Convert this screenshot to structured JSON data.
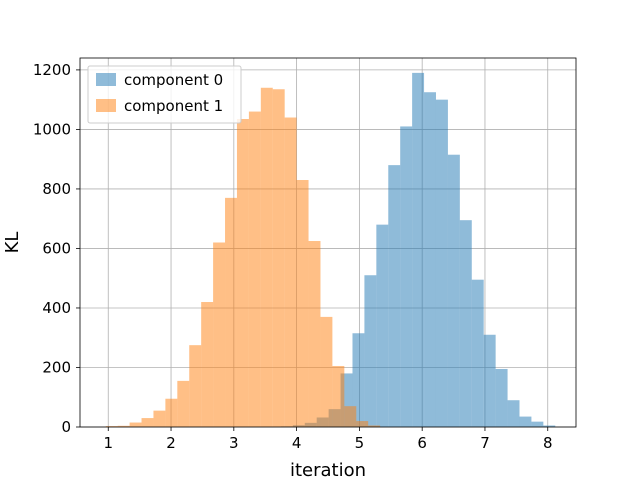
{
  "chart_data": {
    "type": "histogram",
    "xlabel": "iteration",
    "ylabel": "KL",
    "xlim": [
      0.55,
      8.45
    ],
    "ylim": [
      0,
      1200
    ],
    "x_ticks": [
      "1",
      "2",
      "3",
      "4",
      "5",
      "6",
      "7",
      "8"
    ],
    "y_ticks": [
      "0",
      "200",
      "400",
      "600",
      "800",
      "1000",
      "1200"
    ],
    "grid": true,
    "legend_position": "top-left",
    "bin_width": 0.19,
    "series": [
      {
        "name": "component 0",
        "color": "#1f77b4",
        "opacity": 0.5,
        "bins": [
          {
            "x": 3.75,
            "value": 2
          },
          {
            "x": 3.94,
            "value": 6
          },
          {
            "x": 4.13,
            "value": 14
          },
          {
            "x": 4.32,
            "value": 32
          },
          {
            "x": 4.51,
            "value": 60
          },
          {
            "x": 4.7,
            "value": 180
          },
          {
            "x": 4.89,
            "value": 315
          },
          {
            "x": 5.08,
            "value": 510
          },
          {
            "x": 5.27,
            "value": 680
          },
          {
            "x": 5.46,
            "value": 880
          },
          {
            "x": 5.65,
            "value": 1010
          },
          {
            "x": 5.84,
            "value": 1190
          },
          {
            "x": 6.03,
            "value": 1125
          },
          {
            "x": 6.22,
            "value": 1100
          },
          {
            "x": 6.41,
            "value": 915
          },
          {
            "x": 6.6,
            "value": 695
          },
          {
            "x": 6.79,
            "value": 495
          },
          {
            "x": 6.98,
            "value": 310
          },
          {
            "x": 7.17,
            "value": 195
          },
          {
            "x": 7.36,
            "value": 90
          },
          {
            "x": 7.55,
            "value": 35
          },
          {
            "x": 7.74,
            "value": 18
          },
          {
            "x": 7.93,
            "value": 5
          }
        ]
      },
      {
        "name": "component 1",
        "color": "#ff7f0e",
        "opacity": 0.5,
        "bins": [
          {
            "x": 0.96,
            "value": 3
          },
          {
            "x": 1.15,
            "value": 4
          },
          {
            "x": 1.34,
            "value": 15
          },
          {
            "x": 1.53,
            "value": 30
          },
          {
            "x": 1.72,
            "value": 55
          },
          {
            "x": 1.91,
            "value": 95
          },
          {
            "x": 2.1,
            "value": 155
          },
          {
            "x": 2.29,
            "value": 275
          },
          {
            "x": 2.48,
            "value": 420
          },
          {
            "x": 2.67,
            "value": 620
          },
          {
            "x": 2.86,
            "value": 770
          },
          {
            "x": 3.05,
            "value": 1035
          },
          {
            "x": 3.24,
            "value": 1060
          },
          {
            "x": 3.43,
            "value": 1140
          },
          {
            "x": 3.62,
            "value": 1135
          },
          {
            "x": 3.81,
            "value": 1040
          },
          {
            "x": 4.0,
            "value": 830
          },
          {
            "x": 4.19,
            "value": 625
          },
          {
            "x": 4.38,
            "value": 370
          },
          {
            "x": 4.57,
            "value": 205
          },
          {
            "x": 4.76,
            "value": 70
          },
          {
            "x": 4.95,
            "value": 20
          },
          {
            "x": 5.14,
            "value": 5
          }
        ]
      }
    ]
  }
}
